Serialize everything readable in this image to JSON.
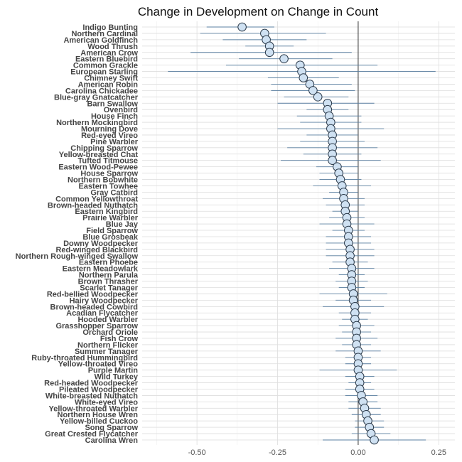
{
  "chart_data": {
    "type": "scatter",
    "title": "Change in Development on Change in Count",
    "xlabel": "",
    "ylabel": "",
    "xlim": [
      -0.67,
      0.3
    ],
    "x_ticks": [
      -0.5,
      -0.25,
      0.0,
      0.25
    ],
    "x_tick_labels": [
      "-0.50",
      "-0.25",
      "0.00",
      "0.25"
    ],
    "reference_line_x": 0,
    "grid": true,
    "point_fill": "#cfe1f2",
    "errorbar_color": "#5a7fa0",
    "species": [
      {
        "name": "Indigo Bunting",
        "estimate": -0.36,
        "lower": -0.47,
        "upper": -0.26
      },
      {
        "name": "Northern Cardinal",
        "estimate": -0.29,
        "lower": -0.49,
        "upper": -0.1
      },
      {
        "name": "American Goldfinch",
        "estimate": -0.285,
        "lower": -0.42,
        "upper": -0.16
      },
      {
        "name": "Wood Thrush",
        "estimate": -0.275,
        "lower": -0.35,
        "upper": -0.2
      },
      {
        "name": "American Crow",
        "estimate": -0.275,
        "lower": -0.52,
        "upper": -0.02
      },
      {
        "name": "Eastern Bluebird",
        "estimate": -0.23,
        "lower": -0.37,
        "upper": -0.08
      },
      {
        "name": "Common Grackle",
        "estimate": -0.18,
        "lower": -0.41,
        "upper": 0.06
      },
      {
        "name": "European Starling",
        "estimate": -0.175,
        "lower": -0.59,
        "upper": 0.24
      },
      {
        "name": "Chimney Swift",
        "estimate": -0.17,
        "lower": -0.28,
        "upper": -0.06
      },
      {
        "name": "American Robin",
        "estimate": -0.15,
        "lower": -0.27,
        "upper": -0.02
      },
      {
        "name": "Carolina Chickadee",
        "estimate": -0.14,
        "lower": -0.27,
        "upper": -0.01
      },
      {
        "name": "Blue-gray Gnatcatcher",
        "estimate": -0.125,
        "lower": -0.23,
        "upper": -0.03
      },
      {
        "name": "Barn Swallow",
        "estimate": -0.095,
        "lower": -0.25,
        "upper": 0.05
      },
      {
        "name": "Ovenbird",
        "estimate": -0.095,
        "lower": -0.16,
        "upper": -0.03
      },
      {
        "name": "House Finch",
        "estimate": -0.09,
        "lower": -0.19,
        "upper": 0.01
      },
      {
        "name": "Northern Mockingbird",
        "estimate": -0.085,
        "lower": -0.18,
        "upper": 0.01
      },
      {
        "name": "Mourning Dove",
        "estimate": -0.085,
        "lower": -0.25,
        "upper": 0.08
      },
      {
        "name": "Red-eyed Vireo",
        "estimate": -0.08,
        "lower": -0.16,
        "upper": 0.0
      },
      {
        "name": "Pine Warbler",
        "estimate": -0.08,
        "lower": -0.18,
        "upper": 0.02
      },
      {
        "name": "Chipping Sparrow",
        "estimate": -0.08,
        "lower": -0.22,
        "upper": 0.06
      },
      {
        "name": "Yellow-breasted Chat",
        "estimate": -0.08,
        "lower": -0.17,
        "upper": 0.01
      },
      {
        "name": "Tufted Titmouse",
        "estimate": -0.08,
        "lower": -0.24,
        "upper": 0.07
      },
      {
        "name": "Eastern Wood-Pewee",
        "estimate": -0.065,
        "lower": -0.13,
        "upper": 0.0
      },
      {
        "name": "House Sparrow",
        "estimate": -0.06,
        "lower": -0.12,
        "upper": 0.0
      },
      {
        "name": "Northern Bobwhite",
        "estimate": -0.055,
        "lower": -0.12,
        "upper": 0.01
      },
      {
        "name": "Eastern Towhee",
        "estimate": -0.05,
        "lower": -0.14,
        "upper": 0.04
      },
      {
        "name": "Gray Catbird",
        "estimate": -0.045,
        "lower": -0.09,
        "upper": 0.0
      },
      {
        "name": "Common Yellowthroat",
        "estimate": -0.045,
        "lower": -0.11,
        "upper": 0.02
      },
      {
        "name": "Brown-headed Nuthatch",
        "estimate": -0.04,
        "lower": -0.1,
        "upper": 0.02
      },
      {
        "name": "Eastern Kingbird",
        "estimate": -0.04,
        "lower": -0.08,
        "upper": 0.0
      },
      {
        "name": "Prairie Warbler",
        "estimate": -0.035,
        "lower": -0.09,
        "upper": 0.02
      },
      {
        "name": "Blue Jay",
        "estimate": -0.035,
        "lower": -0.12,
        "upper": 0.05
      },
      {
        "name": "Field Sparrow",
        "estimate": -0.03,
        "lower": -0.08,
        "upper": 0.02
      },
      {
        "name": "Blue Grosbeak",
        "estimate": -0.03,
        "lower": -0.1,
        "upper": 0.04
      },
      {
        "name": "Downy Woodpecker",
        "estimate": -0.03,
        "lower": -0.1,
        "upper": 0.04
      },
      {
        "name": "Red-winged Blackbird",
        "estimate": -0.025,
        "lower": -0.1,
        "upper": 0.05
      },
      {
        "name": "Northern Rough-winged Swallow",
        "estimate": -0.025,
        "lower": -0.1,
        "upper": 0.05
      },
      {
        "name": "Eastern Phoebe",
        "estimate": -0.025,
        "lower": -0.08,
        "upper": 0.03
      },
      {
        "name": "Eastern Meadowlark",
        "estimate": -0.02,
        "lower": -0.09,
        "upper": 0.05
      },
      {
        "name": "Northern Parula",
        "estimate": -0.02,
        "lower": -0.06,
        "upper": 0.02
      },
      {
        "name": "Brown Thrasher",
        "estimate": -0.02,
        "lower": -0.07,
        "upper": 0.03
      },
      {
        "name": "Scarlet Tanager",
        "estimate": -0.02,
        "lower": -0.06,
        "upper": 0.02
      },
      {
        "name": "Red-bellied Woodpecker",
        "estimate": -0.015,
        "lower": -0.12,
        "upper": 0.09
      },
      {
        "name": "Hairy Woodpecker",
        "estimate": -0.015,
        "lower": -0.07,
        "upper": 0.04
      },
      {
        "name": "Brown-headed Cowbird",
        "estimate": -0.01,
        "lower": -0.11,
        "upper": 0.08
      },
      {
        "name": "Acadian Flycatcher",
        "estimate": -0.01,
        "lower": -0.06,
        "upper": 0.04
      },
      {
        "name": "Hooded Warbler",
        "estimate": -0.01,
        "lower": -0.05,
        "upper": 0.03
      },
      {
        "name": "Grasshopper Sparrow",
        "estimate": -0.005,
        "lower": -0.06,
        "upper": 0.05
      },
      {
        "name": "Orchard Oriole",
        "estimate": -0.005,
        "lower": -0.05,
        "upper": 0.04
      },
      {
        "name": "Fish Crow",
        "estimate": -0.005,
        "lower": -0.07,
        "upper": 0.06
      },
      {
        "name": "Northern Flicker",
        "estimate": -0.005,
        "lower": -0.05,
        "upper": 0.04
      },
      {
        "name": "Summer Tanager",
        "estimate": 0.0,
        "lower": -0.07,
        "upper": 0.07
      },
      {
        "name": "Ruby-throated Hummingbird",
        "estimate": 0.0,
        "lower": -0.04,
        "upper": 0.04
      },
      {
        "name": "Yellow-throated Vireo",
        "estimate": 0.0,
        "lower": -0.04,
        "upper": 0.04
      },
      {
        "name": "Purple Martin",
        "estimate": 0.0,
        "lower": -0.12,
        "upper": 0.12
      },
      {
        "name": "Wild Turkey",
        "estimate": 0.005,
        "lower": -0.04,
        "upper": 0.05
      },
      {
        "name": "Red-headed Woodpecker",
        "estimate": 0.005,
        "lower": -0.03,
        "upper": 0.04
      },
      {
        "name": "Pileated Woodpecker",
        "estimate": 0.005,
        "lower": -0.04,
        "upper": 0.05
      },
      {
        "name": "White-breasted Nuthatch",
        "estimate": 0.01,
        "lower": -0.04,
        "upper": 0.06
      },
      {
        "name": "White-eyed Vireo",
        "estimate": 0.015,
        "lower": -0.03,
        "upper": 0.06
      },
      {
        "name": "Yellow-throated Warbler",
        "estimate": 0.02,
        "lower": -0.03,
        "upper": 0.07
      },
      {
        "name": "Northern House Wren",
        "estimate": 0.025,
        "lower": -0.02,
        "upper": 0.07
      },
      {
        "name": "Yellow-billed Cuckoo",
        "estimate": 0.03,
        "lower": -0.01,
        "upper": 0.08
      },
      {
        "name": "Song Sparrow",
        "estimate": 0.035,
        "lower": -0.01,
        "upper": 0.08
      },
      {
        "name": "Great Crested Flycatcher",
        "estimate": 0.04,
        "lower": -0.02,
        "upper": 0.1
      },
      {
        "name": "Carolina Wren",
        "estimate": 0.05,
        "lower": -0.11,
        "upper": 0.21
      }
    ]
  }
}
